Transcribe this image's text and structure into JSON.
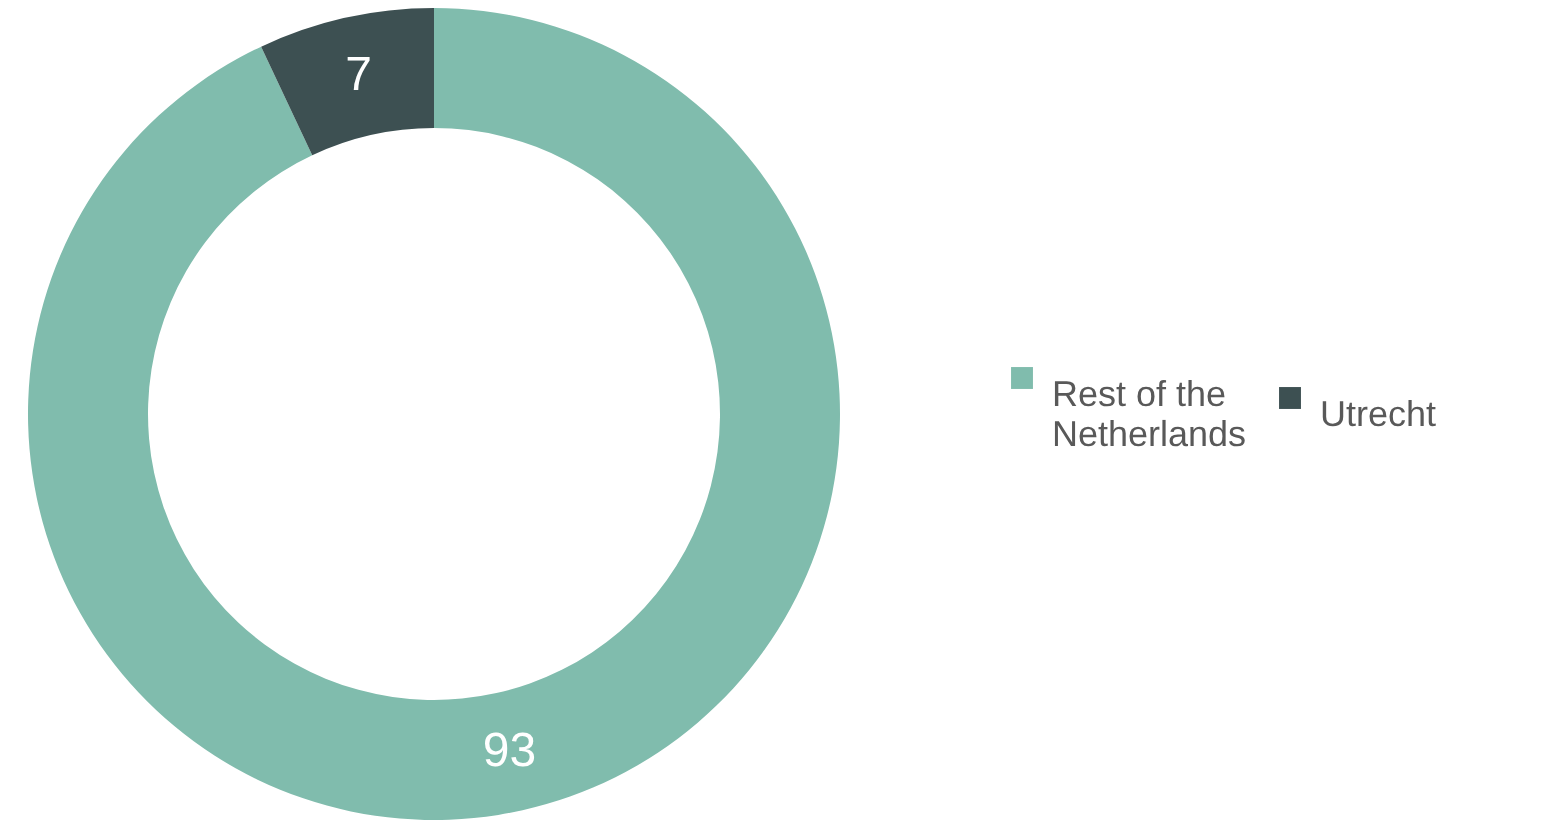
{
  "chart_data": {
    "type": "donut",
    "categories": [
      "Rest of the Netherlands",
      "Utrecht"
    ],
    "values": [
      93,
      7
    ],
    "colors": [
      "#80bcad",
      "#3d5052"
    ],
    "data_labels": true,
    "legend": "right"
  }
}
